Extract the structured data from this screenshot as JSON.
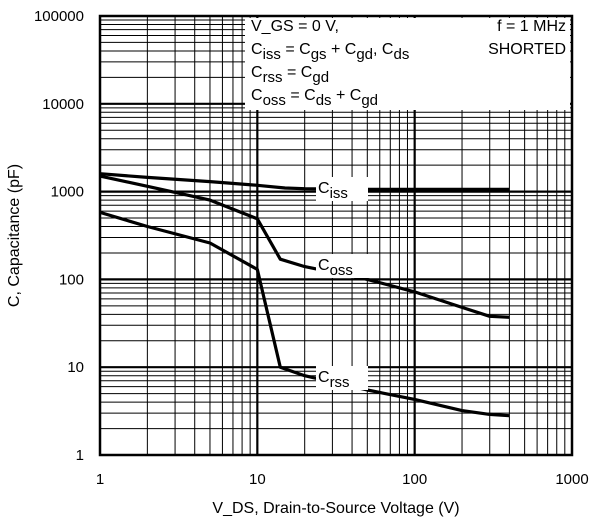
{
  "chart_data": {
    "type": "line",
    "title": "",
    "xlabel": "V_DS, Drain-to-Source Voltage (V)",
    "ylabel": "C, Capacitance (pF)",
    "xscale": "log",
    "yscale": "log",
    "xlim": [
      1,
      1000
    ],
    "ylim": [
      1,
      100000
    ],
    "grid": true,
    "x_tick_labels": [
      "1",
      "10",
      "100",
      "1000"
    ],
    "y_tick_labels": [
      "1",
      "10",
      "100",
      "1000",
      "10000",
      "100000"
    ],
    "conditions": {
      "vgs": "V_GS = 0 V,",
      "ciss_def": "C_iss = C_gs + C_gd, C_ds",
      "crss_def": "C_rss = C_gd",
      "coss_def": "C_oss = C_ds + C_gd",
      "freq": "f = 1 MHz",
      "shorted": "SHORTED"
    },
    "series": [
      {
        "name": "C_iss",
        "x": [
          1,
          2,
          5,
          10,
          15,
          20,
          50,
          100,
          200,
          300,
          400
        ],
        "y": [
          1600,
          1450,
          1300,
          1180,
          1100,
          1080,
          1060,
          1060,
          1060,
          1060,
          1060
        ]
      },
      {
        "name": "C_oss",
        "x": [
          1,
          2,
          5,
          10,
          14,
          20,
          50,
          100,
          200,
          300,
          400
        ],
        "y": [
          1500,
          1150,
          800,
          490,
          170,
          140,
          100,
          72,
          48,
          38,
          37
        ]
      },
      {
        "name": "C_rss",
        "x": [
          1,
          2,
          5,
          10,
          14,
          20,
          50,
          100,
          200,
          300,
          400
        ],
        "y": [
          580,
          400,
          260,
          130,
          10,
          8,
          5.5,
          4.3,
          3.2,
          2.9,
          2.8
        ]
      }
    ]
  }
}
